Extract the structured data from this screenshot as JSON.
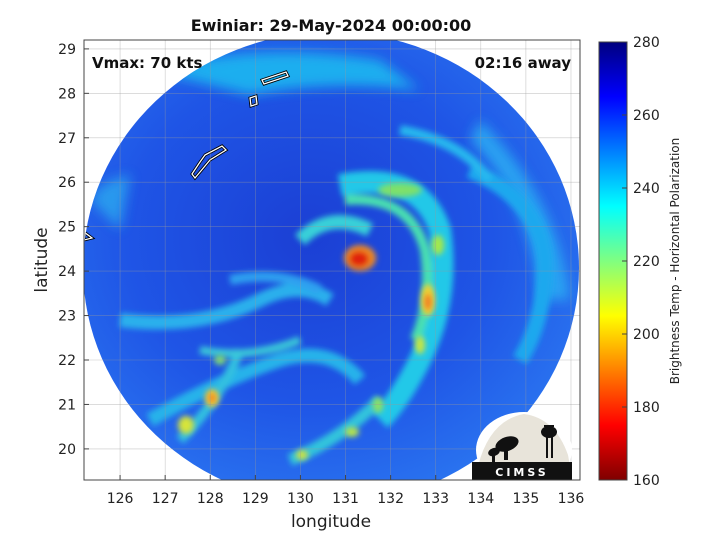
{
  "chart_data": {
    "type": "heatmap",
    "title": "Ewiniar: 29-May-2024 00:00:00",
    "xlabel": "longitude",
    "ylabel": "latitude",
    "xlim": [
      125.2,
      136.2
    ],
    "ylim": [
      19.3,
      29.2
    ],
    "xticks": [
      126,
      127,
      128,
      129,
      130,
      131,
      132,
      133,
      134,
      135,
      136
    ],
    "yticks": [
      20,
      21,
      22,
      23,
      24,
      25,
      26,
      27,
      28,
      29
    ],
    "grid": true,
    "colorbar": {
      "label": "Brightness Temp - Horizontal Polarization",
      "range": [
        160,
        280
      ],
      "ticks": [
        160,
        180,
        200,
        220,
        240,
        260,
        280
      ],
      "colormap": "jet"
    },
    "storm_center": {
      "lon": 131.3,
      "lat": 24.3
    },
    "annotations": {
      "vmax": "Vmax: 70 kts",
      "time_offset": "02:16 away"
    }
  },
  "logo": {
    "text": "CIMSS"
  },
  "colors": {
    "background_cold": "#1e4fe0",
    "deep_blue": "#1a36b8",
    "warm_core": "#e02010"
  }
}
